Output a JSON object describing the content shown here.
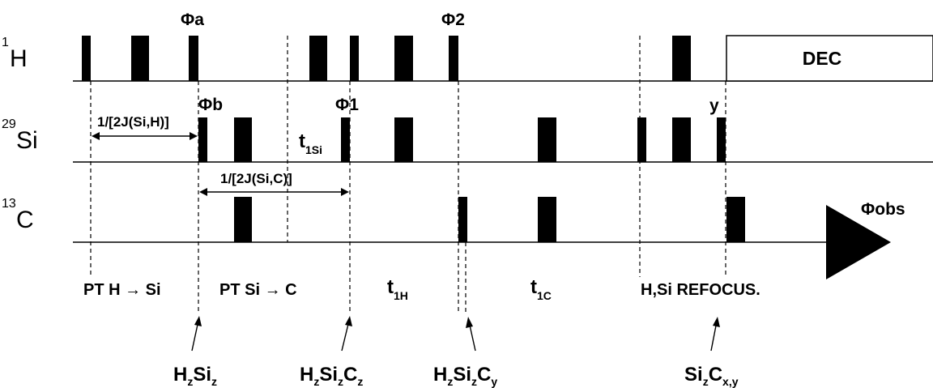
{
  "channels": {
    "h": {
      "sup": "1",
      "name": "H"
    },
    "si": {
      "sup": "29",
      "name": "Si"
    },
    "c": {
      "sup": "13",
      "name": "C"
    }
  },
  "phases": {
    "phi_a": "Φa",
    "phi_b": "Φb",
    "phi_1": "Φ1",
    "phi_2": "Φ2",
    "y": "y",
    "phi_obs": "Φobs"
  },
  "decoupling_label": "DEC",
  "delays": {
    "h_to_si": "1/[2J(Si,H)]",
    "si_to_c": "1/[2J(Si,C)]"
  },
  "t1si": {
    "main": "t",
    "sub": "1Si"
  },
  "blocks": {
    "pt_h_si": "PT H → Si",
    "pt_si_c": "PT Si → C",
    "t1h": {
      "main": "t",
      "sub": "1H"
    },
    "t1c": {
      "main": "t",
      "sub": "1C"
    },
    "refocus": "H,Si REFOCUS."
  },
  "states": {
    "hzsiz": {
      "p1": "H",
      "s1": "z",
      "p2": "Si",
      "s2": "z"
    },
    "hzsizcz": {
      "p1": "H",
      "s1": "z",
      "p2": "Si",
      "s2": "z",
      "p3": "C",
      "s3": "z"
    },
    "hzsizcy": {
      "p1": "H",
      "s1": "z",
      "p2": "Si",
      "s2": "z",
      "p3": "C",
      "s3": "y"
    },
    "sizcxy": {
      "p1": "Si",
      "s1": "z",
      "p2": "C",
      "s2": "x,y"
    }
  }
}
